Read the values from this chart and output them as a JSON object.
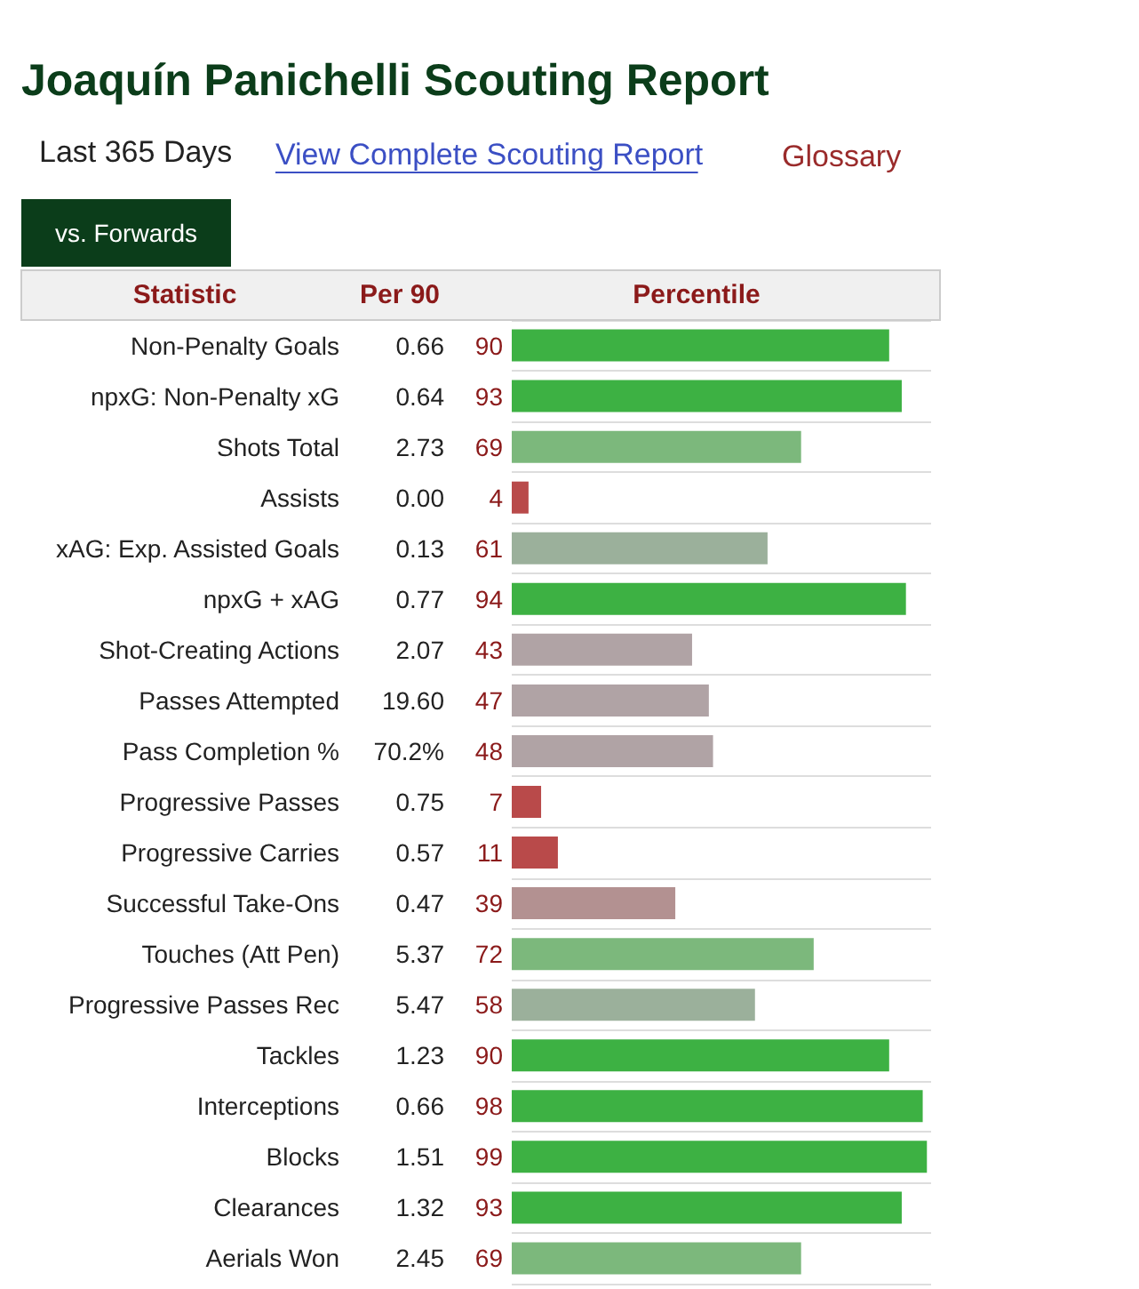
{
  "chart_data": {
    "type": "bar",
    "orientation": "horizontal",
    "title": "Joaquín Panichelli Scouting Report",
    "subtitle": "Last 365 Days",
    "xlabel": "Percentile",
    "ylabel": "Statistic",
    "categories": [
      "Non-Penalty Goals",
      "npxG: Non-Penalty xG",
      "Shots Total",
      "Assists",
      "xAG: Exp. Assisted Goals",
      "npxG + xAG",
      "Shot-Creating Actions",
      "Passes Attempted",
      "Pass Completion %",
      "Progressive Passes",
      "Progressive Carries",
      "Successful Take-Ons",
      "Touches (Att Pen)",
      "Progressive Passes Rec",
      "Tackles",
      "Interceptions",
      "Blocks",
      "Clearances",
      "Aerials Won"
    ],
    "values": [
      90,
      93,
      69,
      4,
      61,
      94,
      43,
      47,
      48,
      7,
      11,
      39,
      72,
      58,
      90,
      98,
      99,
      93,
      69
    ],
    "colors": [
      "#3db143",
      "#3db143",
      "#7cb87c",
      "#b94a4a",
      "#9bb09b",
      "#3db143",
      "#b0a3a5",
      "#b0a3a5",
      "#b0a3a5",
      "#b94a4a",
      "#b94a4a",
      "#b39191",
      "#7cb87c",
      "#9bb09b",
      "#3db143",
      "#3db143",
      "#3db143",
      "#3db143",
      "#7cb87c"
    ],
    "data_labels": true,
    "grid": "y",
    "annotations": [
      "vs. Forwards",
      "View Complete Scouting Report",
      "Glossary",
      "Per 90",
      "0.66",
      "0.64",
      "2.73",
      "0.00",
      "0.13",
      "0.77",
      "2.07",
      "19.60",
      "70.2%",
      "0.75",
      "0.57",
      "0.47",
      "5.37",
      "5.47",
      "1.23",
      "0.66",
      "1.51",
      "1.32",
      "2.45"
    ]
  }
}
